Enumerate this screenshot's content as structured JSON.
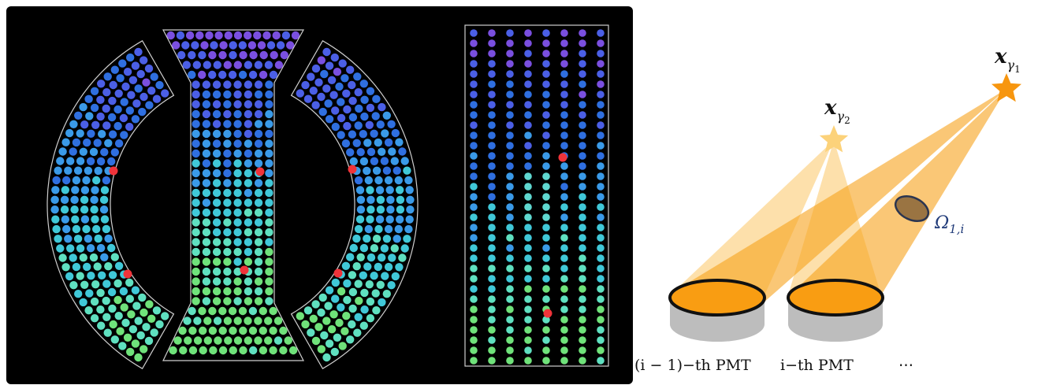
{
  "schematic": {
    "source_1": {
      "symbol": "x",
      "subscript": "γ",
      "index": "1"
    },
    "source_2": {
      "symbol": "x",
      "subscript": "γ",
      "index": "2"
    },
    "solid_angle": {
      "symbol": "Ω",
      "subscript": "1,i"
    },
    "pmt_labels": [
      "(i − 1)−th PMT",
      "i−th PMT",
      "⋯"
    ]
  }
}
